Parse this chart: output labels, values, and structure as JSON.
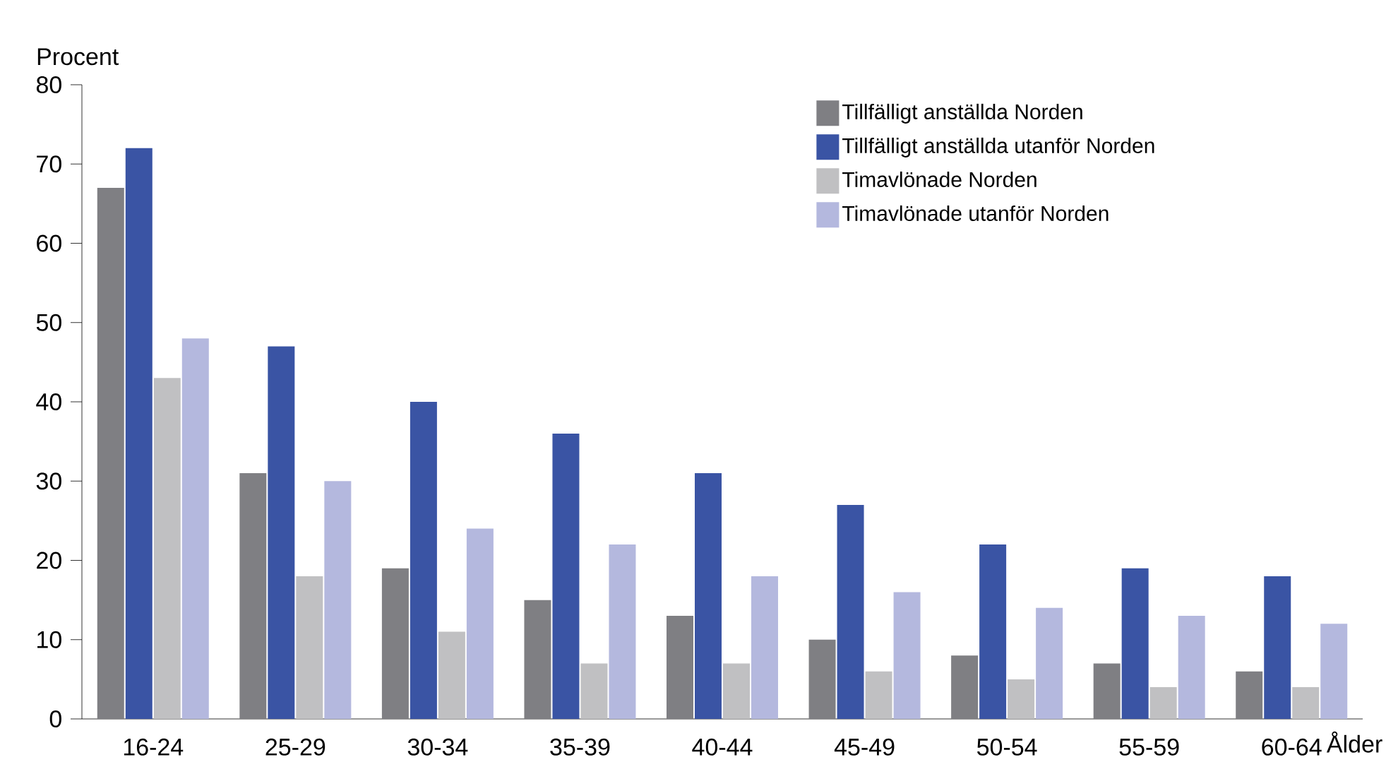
{
  "chart_data": {
    "type": "bar",
    "xlabel": "Ålder",
    "ylabel": "Procent",
    "categories": [
      "16-24",
      "25-29",
      "30-34",
      "35-39",
      "40-44",
      "45-49",
      "50-54",
      "55-59",
      "60-64"
    ],
    "series": [
      {
        "name": "Tillfälligt anställda Norden",
        "color": "#7f7f83",
        "values": [
          67,
          31,
          19,
          15,
          13,
          10,
          8,
          7,
          6
        ]
      },
      {
        "name": "Tillfälligt anställda utanför Norden",
        "color": "#3a54a4",
        "values": [
          72,
          47,
          40,
          36,
          31,
          27,
          22,
          19,
          18
        ]
      },
      {
        "name": "Timavlönade Norden",
        "color": "#c0c0c2",
        "values": [
          43,
          18,
          11,
          7,
          7,
          6,
          5,
          4,
          4
        ]
      },
      {
        "name": "Timavlönade utanför Norden",
        "color": "#b4b8de",
        "values": [
          48,
          30,
          24,
          22,
          18,
          16,
          14,
          13,
          12
        ]
      }
    ],
    "ylim": [
      0,
      80
    ],
    "yticks": [
      0,
      10,
      20,
      30,
      40,
      50,
      60,
      70,
      80
    ],
    "grid": false,
    "legend": "top right"
  }
}
